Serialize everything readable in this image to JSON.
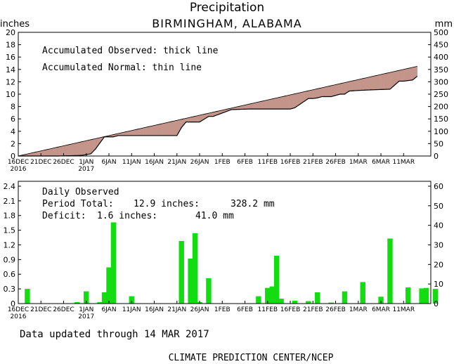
{
  "chart_data": [
    {
      "type": "area",
      "title": "Precipitation",
      "subtitle": "BIRMINGHAM, ALABAMA",
      "ylabel": "inches",
      "y2label": "mm",
      "ylim": [
        0,
        20
      ],
      "y2lim": [
        0,
        500
      ],
      "yticks": [
        "0",
        "2",
        "4",
        "6",
        "8",
        "10",
        "12",
        "14",
        "16",
        "18",
        "20"
      ],
      "y2ticks": [
        "0",
        "50",
        "100",
        "150",
        "200",
        "250",
        "300",
        "350",
        "400",
        "450",
        "500"
      ],
      "annotations": [
        "Accumulated Observed: thick line",
        "Accumulated Normal: thin line"
      ],
      "x_start_date": "2016-12-16",
      "colors": {
        "deficit": "#c4958a",
        "surplus": "#a0f090",
        "observed_line": "#000000",
        "bars": "#11dd11"
      },
      "series": [
        {
          "name": "Accumulated Observed",
          "x": [
            0,
            9,
            14,
            16,
            17,
            19,
            21,
            22,
            23,
            30,
            33,
            35,
            36,
            37,
            40,
            42,
            43,
            47,
            51,
            60,
            61,
            64,
            65,
            66,
            67,
            68,
            69,
            71,
            72,
            73,
            75,
            78,
            82,
            84,
            85,
            87,
            88
          ],
          "y": [
            0,
            0,
            0.1,
            0.35,
            1.1,
            3.1,
            3.1,
            3.3,
            3.3,
            3.3,
            3.3,
            3.3,
            4.6,
            5.5,
            5.5,
            6.4,
            6.4,
            7.5,
            7.6,
            7.6,
            7.8,
            9.3,
            9.3,
            9.4,
            9.6,
            9.6,
            9.6,
            10.0,
            10.0,
            10.5,
            10.6,
            10.7,
            10.8,
            12.1,
            12.1,
            12.3,
            12.9
          ]
        },
        {
          "name": "Accumulated Normal",
          "x": [
            0,
            88
          ],
          "y": [
            0,
            14.5
          ]
        }
      ]
    },
    {
      "type": "bar",
      "ylim": [
        0,
        2.5
      ],
      "y2lim": [
        0,
        62.5
      ],
      "yticks": [
        "0",
        "0.3",
        "0.6",
        "0.9",
        "1.2",
        "1.5",
        "1.8",
        "2.1",
        "2.4"
      ],
      "y2ticks": [
        "0",
        "10",
        "20",
        "30",
        "40",
        "50",
        "60"
      ],
      "labels": {
        "heading": "Daily Observed",
        "total_label": "Period Total:",
        "total_in": "12.9 inches:",
        "total_mm": "328.2 mm",
        "deficit_label": "Deficit:",
        "deficit_in": "1.6 inches:",
        "deficit_mm": "41.0 mm"
      },
      "x": [
        2,
        13,
        15,
        18,
        19,
        20,
        21,
        25,
        36,
        38,
        39,
        40,
        42,
        53,
        55,
        56,
        57,
        58,
        61,
        64,
        66,
        69,
        72,
        76,
        80,
        82,
        86,
        89,
        90,
        92
      ],
      "values": [
        0.3,
        0.03,
        0.25,
        0.03,
        0.23,
        0.74,
        1.66,
        0.15,
        1.28,
        0.92,
        1.44,
        0.03,
        0.52,
        0.15,
        0.32,
        0.35,
        0.98,
        0.1,
        0.06,
        0.05,
        0.23,
        0.02,
        0.25,
        0.44,
        0.14,
        1.33,
        0.33,
        0.31,
        0.32,
        0.3
      ]
    }
  ],
  "x_axis": {
    "ticks": [
      {
        "label": "16DEC",
        "sub": "2016"
      },
      {
        "label": "21DEC"
      },
      {
        "label": "26DEC"
      },
      {
        "label": "1JAN",
        "sub": "2017"
      },
      {
        "label": "6JAN"
      },
      {
        "label": "11JAN"
      },
      {
        "label": "16JAN"
      },
      {
        "label": "21JAN"
      },
      {
        "label": "26JAN"
      },
      {
        "label": "1FEB"
      },
      {
        "label": "6FEB"
      },
      {
        "label": "11FEB"
      },
      {
        "label": "16FEB"
      },
      {
        "label": "21FEB"
      },
      {
        "label": "26FEB"
      },
      {
        "label": "1MAR"
      },
      {
        "label": "6MAR"
      },
      {
        "label": "11MAR"
      }
    ]
  },
  "footer": {
    "updated": "Data updated through 14 MAR 2017",
    "credit": "CLIMATE PREDICTION CENTER/NCEP"
  }
}
